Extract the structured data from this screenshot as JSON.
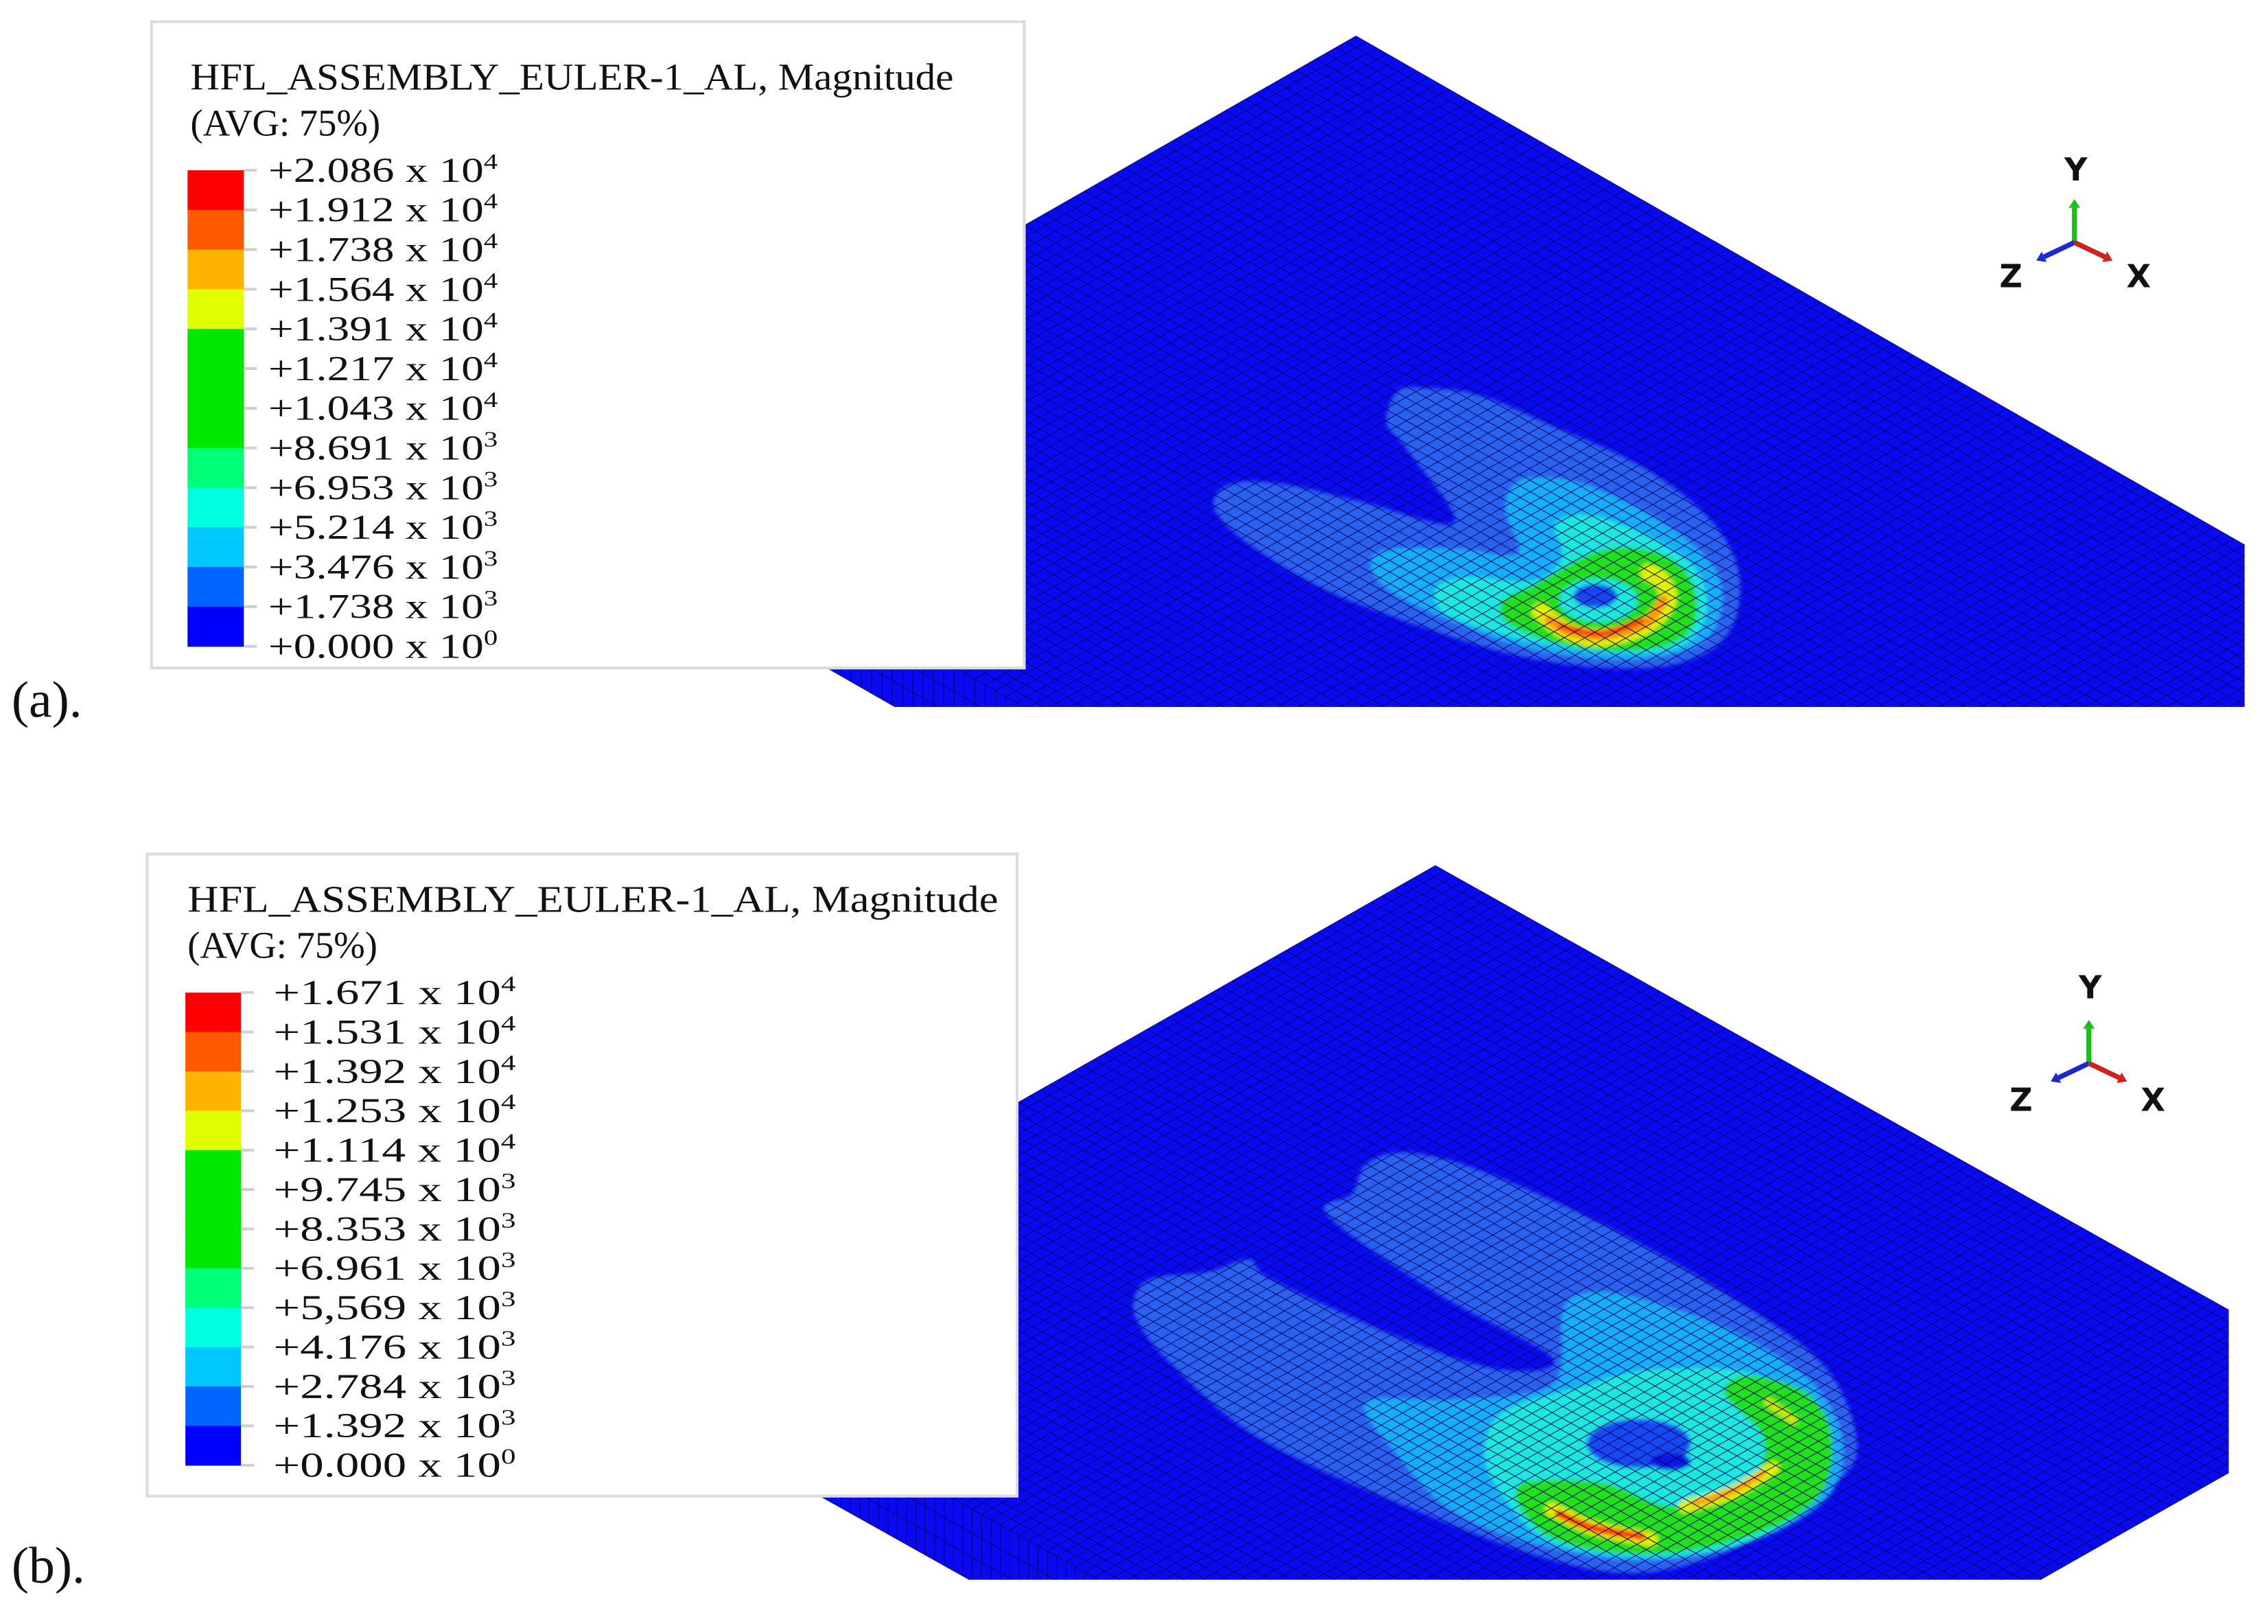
{
  "panels": [
    {
      "label": "(a).",
      "legend": {
        "title": "HFL_ASSEMBLY_EULER-1_AL, Magnitude",
        "subtitle": "(AVG: 75%)",
        "levels": [
          {
            "value": "+2.086",
            "base": "x 10",
            "exponent": "4"
          },
          {
            "value": "+1.912",
            "base": "x 10",
            "exponent": "4"
          },
          {
            "value": "+1.738",
            "base": "x 10",
            "exponent": "4"
          },
          {
            "value": "+1.564",
            "base": "x 10",
            "exponent": "4"
          },
          {
            "value": "+1.391",
            "base": "x 10",
            "exponent": "4"
          },
          {
            "value": "+1.217",
            "base": "x 10",
            "exponent": "4"
          },
          {
            "value": "+1.043",
            "base": "x 10",
            "exponent": "4"
          },
          {
            "value": "+8.691",
            "base": "x 10",
            "exponent": "3"
          },
          {
            "value": "+6.953",
            "base": "x 10",
            "exponent": "3"
          },
          {
            "value": "+5.214",
            "base": "x 10",
            "exponent": "3"
          },
          {
            "value": "+3.476",
            "base": "x 10",
            "exponent": "3"
          },
          {
            "value": "+1.738",
            "base": "x 10",
            "exponent": "3"
          },
          {
            "value": "+0.000",
            "base": "x 10",
            "exponent": "0"
          }
        ]
      },
      "triad": {
        "y": "Y",
        "z": "Z",
        "x": "X"
      }
    },
    {
      "label": "(b).",
      "legend": {
        "title": "HFL_ASSEMBLY_EULER-1_AL, Magnitude",
        "subtitle": "(AVG: 75%)",
        "levels": [
          {
            "value": "+1.671",
            "base": "x 10",
            "exponent": "4"
          },
          {
            "value": "+1.531",
            "base": "x 10",
            "exponent": "4"
          },
          {
            "value": "+1.392",
            "base": "x 10",
            "exponent": "4"
          },
          {
            "value": "+1.253",
            "base": "x 10",
            "exponent": "4"
          },
          {
            "value": "+1.114",
            "base": "x 10",
            "exponent": "4"
          },
          {
            "value": "+9.745",
            "base": "x 10",
            "exponent": "3"
          },
          {
            "value": "+8.353",
            "base": "x 10",
            "exponent": "3"
          },
          {
            "value": "+6.961",
            "base": "x 10",
            "exponent": "3"
          },
          {
            "value": "+5,569",
            "base": "x 10",
            "exponent": "3"
          },
          {
            "value": "+4.176",
            "base": "x 10",
            "exponent": "3"
          },
          {
            "value": "+2.784",
            "base": "x 10",
            "exponent": "3"
          },
          {
            "value": "+1.392",
            "base": "x 10",
            "exponent": "3"
          },
          {
            "value": "+0.000",
            "base": "x 10",
            "exponent": "0"
          }
        ]
      },
      "triad": {
        "y": "Y",
        "z": "Z",
        "x": "X"
      }
    }
  ],
  "colors": {
    "legend_bands": [
      "#ff0000",
      "#ff5a00",
      "#ffb400",
      "#e0ff00",
      "#00e800",
      "#00e800",
      "#00e800",
      "#00ff78",
      "#00ffe0",
      "#00c8ff",
      "#0064ff",
      "#0000ff"
    ],
    "mesh_surface": "#0a0af0",
    "mesh_lines": "#00006a",
    "axis_y": "#19c019",
    "axis_z": "#1a2ad0",
    "axis_x": "#d02020"
  }
}
